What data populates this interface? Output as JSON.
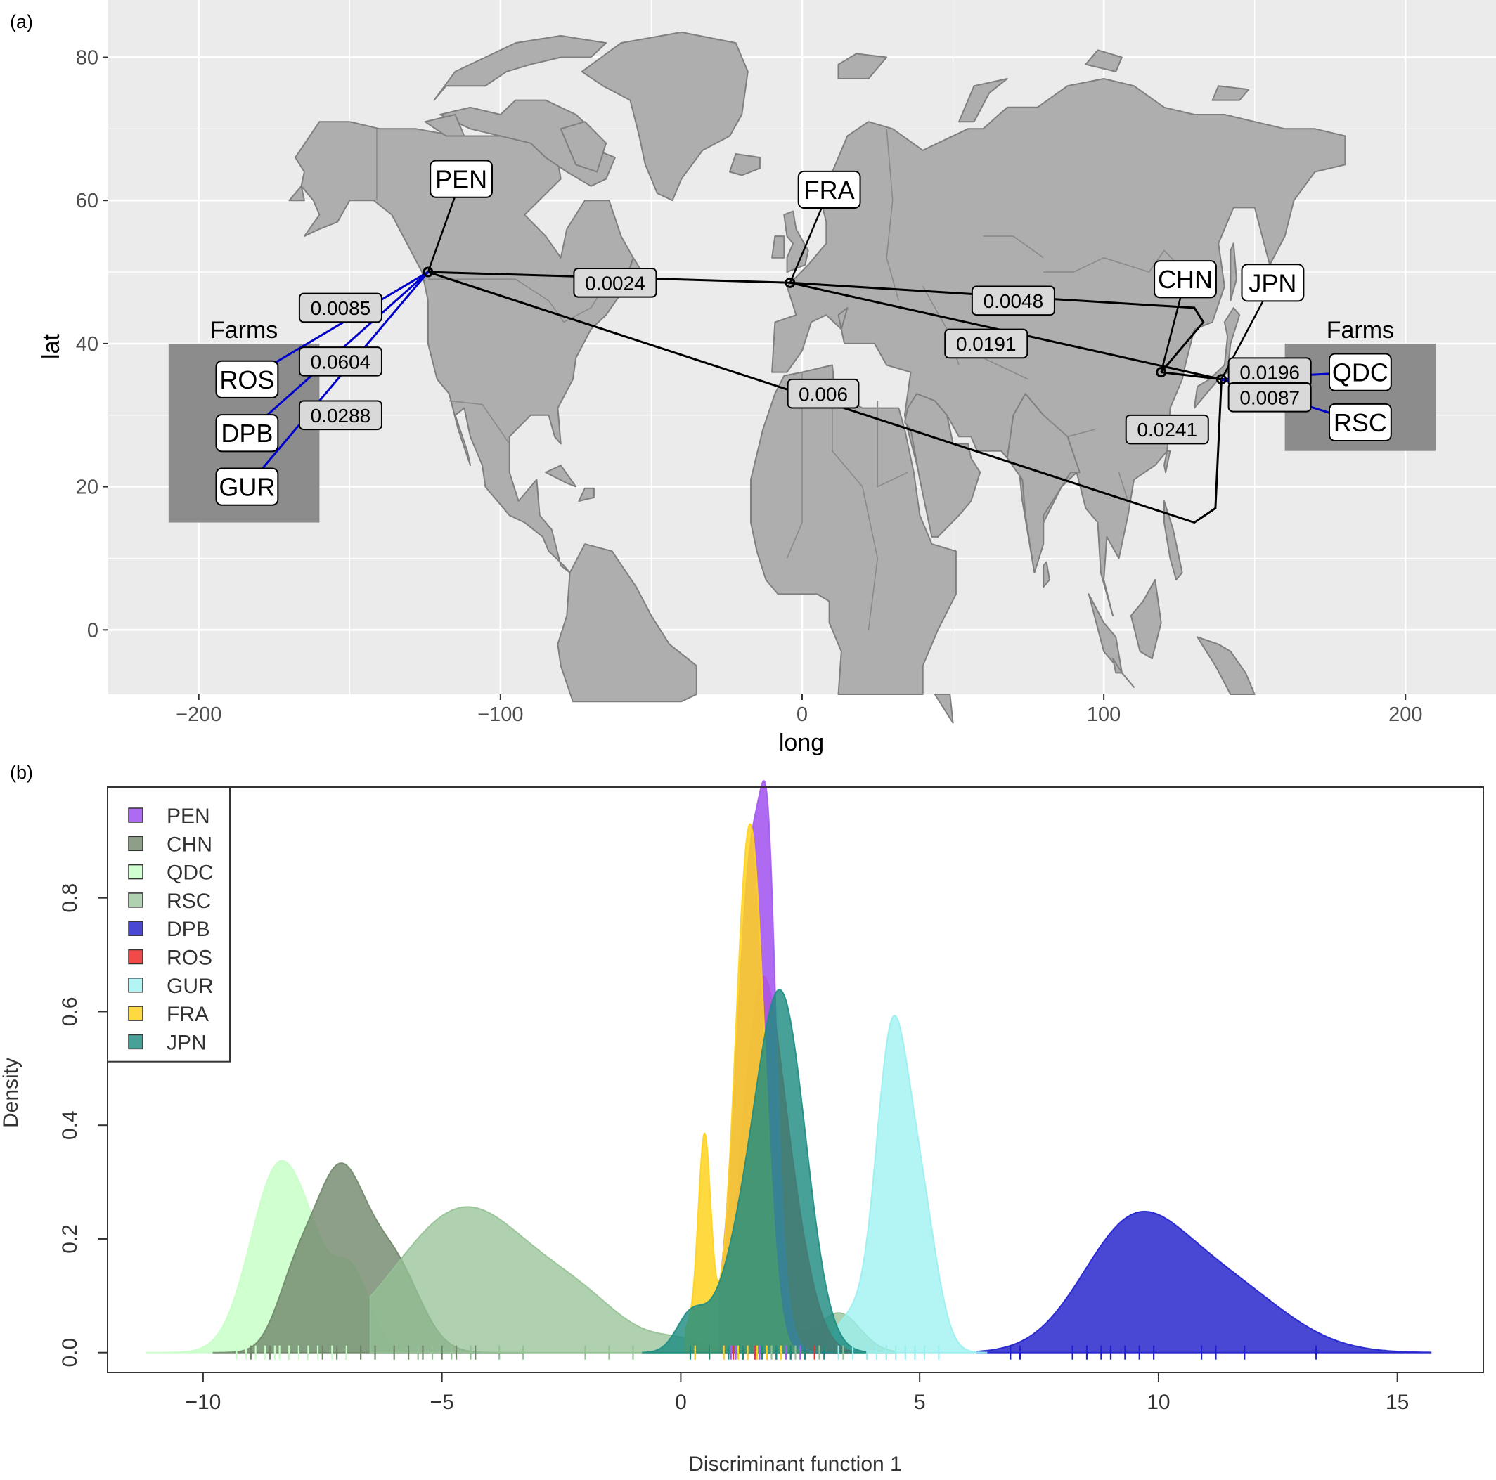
{
  "chart_data": [
    {
      "panel_label": "(a)",
      "type": "map",
      "xlabel": "long",
      "ylabel": "lat",
      "xlim": [
        -230,
        230
      ],
      "ylim": [
        -9,
        88
      ],
      "x_ticks": [
        -200,
        -100,
        0,
        100,
        200
      ],
      "x_tick_labels": [
        "−200",
        "−100",
        "0",
        "100",
        "200"
      ],
      "y_ticks": [
        0,
        20,
        40,
        60,
        80
      ],
      "y_tick_labels": [
        "0",
        "20",
        "40",
        "60",
        "80"
      ],
      "grid": true,
      "background": "#ebebeb",
      "land_color": "#aeaeae",
      "sites": [
        {
          "name": "PEN",
          "long": -124,
          "lat": 50,
          "label_long": -113,
          "label_lat": 63
        },
        {
          "name": "FRA",
          "long": -4,
          "lat": 48.5,
          "label_long": 9,
          "label_lat": 61.5
        },
        {
          "name": "CHN",
          "long": 119,
          "lat": 36,
          "label_long": 127,
          "label_lat": 49
        },
        {
          "name": "JPN",
          "long": 139,
          "lat": 35,
          "label_long": 156,
          "label_lat": 48.5
        }
      ],
      "farm_boxes": [
        {
          "title": "Farms",
          "long_min": -210,
          "long_max": -160,
          "lat_min": 15,
          "lat_max": 40,
          "farms": [
            {
              "name": "ROS",
              "long": -184,
              "lat": 35
            },
            {
              "name": "DPB",
              "long": -184,
              "lat": 27.5
            },
            {
              "name": "GUR",
              "long": -184,
              "lat": 20
            }
          ]
        },
        {
          "title": "Farms",
          "long_min": 160,
          "long_max": 210,
          "lat_min": 25,
          "lat_max": 40,
          "farms": [
            {
              "name": "QDC",
              "long": 185,
              "lat": 36
            },
            {
              "name": "RSC",
              "long": 185,
              "lat": 29
            }
          ]
        }
      ],
      "distances": [
        {
          "from": "PEN",
          "to": "FRA",
          "value": "0.0024",
          "label_long": -62,
          "label_lat": 48.5,
          "color": "#000000"
        },
        {
          "from": "FRA",
          "to": "CHN",
          "value": "0.0048",
          "label_long": 70,
          "label_lat": 46,
          "color": "#000000"
        },
        {
          "from": "FRA",
          "to": "JPN",
          "value": "0.0191",
          "label_long": 61,
          "label_lat": 40,
          "color": "#000000"
        },
        {
          "from": "PEN",
          "to": "JPN",
          "value": "0.006",
          "label_long": 7,
          "label_lat": 33,
          "color": "#000000"
        },
        {
          "from": "CHN",
          "to": "JPN",
          "value": "0.0241",
          "label_long": 121,
          "label_lat": 28,
          "color": "#000000"
        },
        {
          "from": "PEN",
          "to": "ROS",
          "value": "0.0085",
          "label_long": -153,
          "label_lat": 45,
          "color": "#0000cc"
        },
        {
          "from": "PEN",
          "to": "DPB",
          "value": "0.0604",
          "label_long": -153,
          "label_lat": 37.5,
          "color": "#0000cc"
        },
        {
          "from": "PEN",
          "to": "GUR",
          "value": "0.0288",
          "label_long": -153,
          "label_lat": 30,
          "color": "#0000cc"
        },
        {
          "from": "JPN",
          "to": "QDC",
          "value": "0.0196",
          "label_long": 155,
          "label_lat": 36,
          "color": "#0000cc"
        },
        {
          "from": "JPN",
          "to": "RSC",
          "value": "0.0087",
          "label_long": 155,
          "label_lat": 32.5,
          "color": "#0000cc"
        }
      ]
    },
    {
      "panel_label": "(b)",
      "type": "area",
      "xlabel": "Discriminant function 1",
      "ylabel": "Density",
      "xlim": [
        -12,
        16.8
      ],
      "ylim": [
        -0.035,
        0.995
      ],
      "x_ticks": [
        -10,
        -5,
        0,
        5,
        10,
        15
      ],
      "x_tick_labels": [
        "−10",
        "−5",
        "0",
        "5",
        "10",
        "15"
      ],
      "y_ticks": [
        0,
        0.2,
        0.4,
        0.6,
        0.8
      ],
      "y_tick_labels": [
        "0.0",
        "0.2",
        "0.4",
        "0.6",
        "0.8"
      ],
      "legend_position": "top-left",
      "series": [
        {
          "name": "PEN",
          "color": "#a55af0",
          "opacity": 0.9,
          "lo": 0.8,
          "hi": 3.2,
          "components": [
            [
              0.9,
              1.52,
              0.35
            ],
            [
              0.35,
              1.85,
              0.15
            ]
          ],
          "rug": [
            0.9,
            1.05,
            1.15,
            1.3,
            1.4,
            1.55,
            1.65,
            1.8,
            2.0,
            2.2,
            2.5
          ]
        },
        {
          "name": "CHN",
          "color": "#71876a",
          "opacity": 0.8,
          "lo": -9.8,
          "hi": -3.3,
          "components": [
            [
              0.31,
              -7.15,
              0.55
            ],
            [
              0.15,
              -6.0,
              0.55
            ],
            [
              0.1,
              -8.1,
              0.4
            ]
          ],
          "rug": [
            -9.0,
            -8.6,
            -8.2,
            -7.8,
            -7.5,
            -7.2,
            -7.0,
            -6.7,
            -6.4,
            -6.0,
            -5.7,
            -5.4,
            -5.0,
            -4.7,
            -4.3
          ]
        },
        {
          "name": "QDC",
          "color": "#c8ffc8",
          "opacity": 0.85,
          "lo": -11.2,
          "hi": 0.0,
          "components": [
            [
              0.33,
              -8.4,
              0.6
            ],
            [
              0.14,
              -6.9,
              0.4
            ],
            [
              0.05,
              -7.7,
              0.35
            ]
          ],
          "rug": [
            -9.3,
            -9.1,
            -8.9,
            -8.7,
            -8.5,
            -8.4,
            -8.2,
            -8.0,
            -7.8,
            -7.6,
            -7.3,
            -7.0
          ]
        },
        {
          "name": "RSC",
          "color": "#96c196",
          "opacity": 0.75,
          "lo": -6.5,
          "hi": 4.5,
          "components": [
            [
              0.255,
              -4.5,
              1.45
            ],
            [
              0.06,
              -2.0,
              0.9
            ],
            [
              0.02,
              0.0,
              0.6
            ],
            [
              0.07,
              3.3,
              0.45
            ],
            [
              0.04,
              2.2,
              0.3
            ]
          ],
          "rug": [
            -5.5,
            -5.2,
            -4.8,
            -4.4,
            -3.8,
            -3.3,
            -2.0,
            -1.5,
            -1.0,
            0.3,
            1.0,
            1.9,
            2.4,
            2.9,
            3.4,
            3.9,
            4.3
          ]
        },
        {
          "name": "DPB",
          "color": "#2020cc",
          "opacity": 0.82,
          "lo": 6.2,
          "hi": 15.7,
          "components": [
            [
              0.2,
              9.4,
              1.05
            ],
            [
              0.12,
              11.3,
              1.3
            ]
          ],
          "rug": [
            6.9,
            7.1,
            8.2,
            8.5,
            8.8,
            9.0,
            9.3,
            9.6,
            9.9,
            10.9,
            11.2,
            11.8,
            13.3
          ]
        },
        {
          "name": "ROS",
          "color": "#f03030",
          "opacity": 0.88,
          "lo": 0.9,
          "hi": 3.6,
          "components": [
            [
              0.56,
              1.65,
              0.4
            ],
            [
              0.22,
              2.25,
              0.45
            ]
          ],
          "rug": [
            1.1,
            1.3,
            1.55,
            1.8,
            2.0,
            2.3,
            2.6,
            2.8
          ]
        },
        {
          "name": "GUR",
          "color": "#99f0f0",
          "opacity": 0.75,
          "lo": 2.7,
          "hi": 6.4,
          "components": [
            [
              0.52,
              4.4,
              0.33
            ],
            [
              0.26,
              5.0,
              0.35
            ],
            [
              0.06,
              3.55,
              0.35
            ]
          ],
          "rug": [
            3.3,
            3.6,
            3.9,
            4.1,
            4.3,
            4.5,
            4.7,
            4.9,
            5.1,
            5.4
          ]
        },
        {
          "name": "FRA",
          "color": "#ffd21e",
          "opacity": 0.85,
          "lo": 0.1,
          "hi": 2.7,
          "components": [
            [
              0.93,
              1.45,
              0.3
            ],
            [
              0.34,
              0.5,
              0.13
            ],
            [
              0.05,
              0.3,
              0.3
            ]
          ],
          "rug": [
            0.3,
            0.6,
            0.9,
            1.2,
            1.4,
            1.6,
            1.8,
            2.1
          ]
        },
        {
          "name": "JPN",
          "color": "#1e8c82",
          "opacity": 0.82,
          "lo": -0.8,
          "hi": 3.9,
          "components": [
            [
              0.56,
              2.15,
              0.5
            ],
            [
              0.18,
              1.4,
              0.55
            ],
            [
              0.06,
              0.2,
              0.3
            ]
          ],
          "rug": [
            0.2,
            0.6,
            1.0,
            1.3,
            1.7,
            2.0,
            2.3,
            2.6,
            3.0
          ]
        }
      ]
    }
  ]
}
